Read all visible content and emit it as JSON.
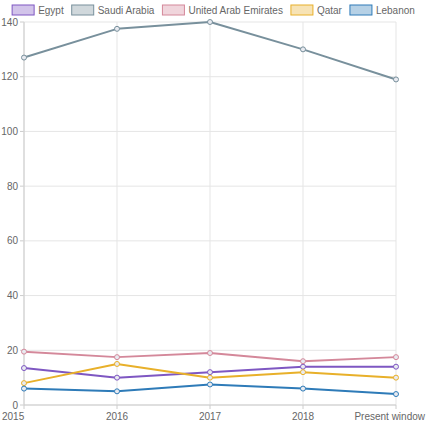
{
  "chart_data": {
    "type": "line",
    "categories": [
      "2015",
      "2016",
      "2017",
      "2018",
      "Present window"
    ],
    "series": [
      {
        "name": "Egypt",
        "color": "#7e57c2",
        "values": [
          13.5,
          10,
          12,
          14,
          14
        ]
      },
      {
        "name": "Saudi Arabia",
        "color": "#78909c",
        "values": [
          127,
          137.5,
          140,
          130,
          119
        ]
      },
      {
        "name": "United Arab Emirates",
        "color": "#d4889a",
        "values": [
          19.5,
          17.5,
          19,
          16,
          17.5
        ]
      },
      {
        "name": "Qatar",
        "color": "#e8b02a",
        "values": [
          8,
          15,
          10,
          12,
          10
        ]
      },
      {
        "name": "Lebanon",
        "color": "#2e7bb8",
        "values": [
          6,
          5,
          7.5,
          6,
          4
        ]
      }
    ],
    "ylim": [
      0,
      140
    ],
    "yticks": [
      0,
      20,
      40,
      60,
      80,
      100,
      120,
      140
    ],
    "grid": true,
    "legend": "top",
    "marker": "circle"
  }
}
